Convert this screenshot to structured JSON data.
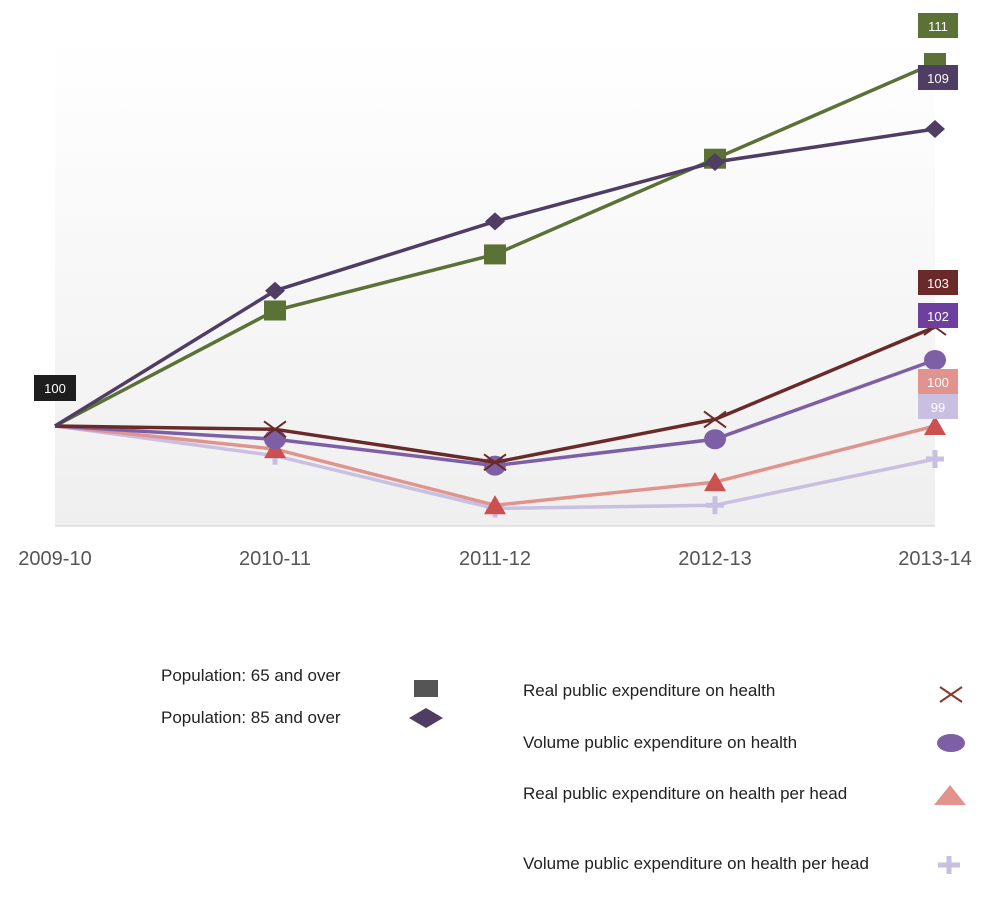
{
  "chart_data": {
    "type": "line",
    "categories": [
      "2009-10",
      "2010-11",
      "2011-12",
      "2012-13",
      "2013-14"
    ],
    "ylim": [
      97,
      112
    ],
    "grid": false,
    "series": [
      {
        "name": "Population: 65 and over",
        "values": [
          100,
          103.5,
          105.2,
          108.1,
          111
        ],
        "color": "#5b7135",
        "marker": "square",
        "end_label": "111",
        "end_label_color": "#5b7135"
      },
      {
        "name": "Population: 85 and over",
        "values": [
          100,
          104.1,
          106.2,
          108.0,
          109
        ],
        "color": "#4f3d63",
        "marker": "diamond",
        "end_label": "109",
        "end_label_color": "#4f3d63"
      },
      {
        "name": "Real public expenditure on health",
        "values": [
          100,
          99.9,
          98.9,
          100.2,
          103
        ],
        "color": "#6b2a2a",
        "marker": "x",
        "end_label": "103",
        "end_label_color": "#6b2a2a"
      },
      {
        "name": "Volume public expenditure on health",
        "values": [
          100,
          99.6,
          98.8,
          99.6,
          102
        ],
        "color": "#7d5fa6",
        "marker": "circle",
        "end_label": "102",
        "end_label_color": "#6f3fa0"
      },
      {
        "name": "Real public expenditure on health per head",
        "values": [
          100,
          99.3,
          97.6,
          98.3,
          100
        ],
        "color": "#e0948d",
        "marker": "triangle",
        "end_label": "100",
        "end_label_color": "#e0948d"
      },
      {
        "name": "Volume public expenditure on health per head",
        "values": [
          100,
          99.1,
          97.5,
          97.6,
          99
        ],
        "color": "#c9bfe0",
        "marker": "plus",
        "end_label": "99",
        "end_label_color": "#c9bfe0"
      }
    ],
    "start_label": "100",
    "legend": "bottom"
  }
}
